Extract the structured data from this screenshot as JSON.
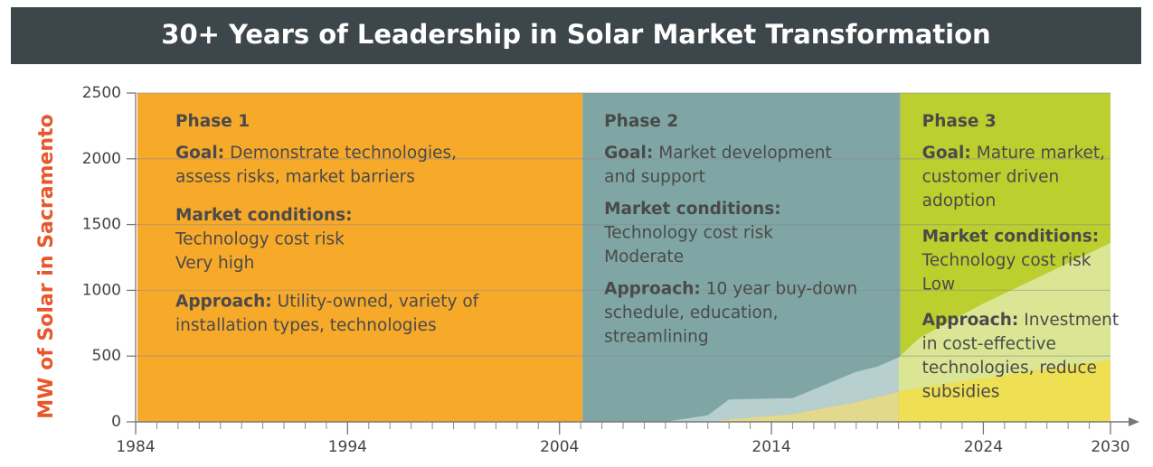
{
  "chart_data": {
    "type": "area",
    "title": "30+ Years of Leadership in Solar Market Transformation",
    "y_label": "MW of Solar in Sacramento",
    "xlim": [
      1984,
      2030
    ],
    "ylim": [
      0,
      2500
    ],
    "xticks": [
      1984,
      1994,
      2004,
      2014,
      2024,
      2030
    ],
    "yticks": [
      0,
      500,
      1000,
      1500,
      2000,
      2500
    ],
    "minor_xtick_step": 1,
    "grid": true,
    "x": [
      2009,
      2011,
      2012,
      2015,
      2018,
      2019,
      2020,
      2021,
      2024,
      2027,
      2030
    ],
    "series": [
      {
        "values": [
          0,
          0,
          20,
          60,
          150,
          190,
          230,
          260,
          330,
          400,
          470
        ]
      },
      {
        "values": [
          0,
          50,
          150,
          120,
          230,
          230,
          260,
          380,
          570,
          730,
          890
        ]
      }
    ],
    "phases": [
      {
        "start": 1984,
        "end": 2005,
        "color": "#f7a92a",
        "area_colors": [
          "#f7a92a",
          "#f7a92a"
        ],
        "title": "Phase 1",
        "goal": {
          "label": "Goal:",
          "lines": [
            "Demonstrate technologies,",
            "assess risks, market barriers"
          ]
        },
        "market": {
          "label": "Market conditions:",
          "lines": [
            "Technology cost risk",
            "Very high"
          ]
        },
        "approach": {
          "label": "Approach:",
          "lines": [
            "Utility-owned, variety of",
            "installation types, technologies"
          ]
        }
      },
      {
        "start": 2005,
        "end": 2020,
        "color": "#7fa6a4",
        "area_colors": [
          "#e3d98c",
          "#b8cfcf"
        ],
        "title": "Phase 2",
        "goal": {
          "label": "Goal:",
          "lines": [
            "Market development",
            "and support"
          ]
        },
        "market": {
          "label": "Market conditions:",
          "lines": [
            "Technology cost risk",
            "Moderate"
          ]
        },
        "approach": {
          "label": "Approach:",
          "lines": [
            "10 year buy-down",
            "schedule, education,",
            "streamlining"
          ]
        }
      },
      {
        "start": 2020,
        "end": 2030,
        "color": "#bccf2e",
        "area_colors": [
          "#efdf52",
          "#dbe695"
        ],
        "title": "Phase 3",
        "goal": {
          "label": "Goal:",
          "lines": [
            "Mature market,",
            "customer driven",
            "adoption"
          ]
        },
        "market": {
          "label": "Market conditions:",
          "lines": [
            "Technology cost risk",
            "Low"
          ]
        },
        "approach": {
          "label": "Approach:",
          "lines": [
            "Investment",
            "in cost-effective",
            "technologies, reduce",
            "subsidies"
          ]
        }
      }
    ]
  }
}
